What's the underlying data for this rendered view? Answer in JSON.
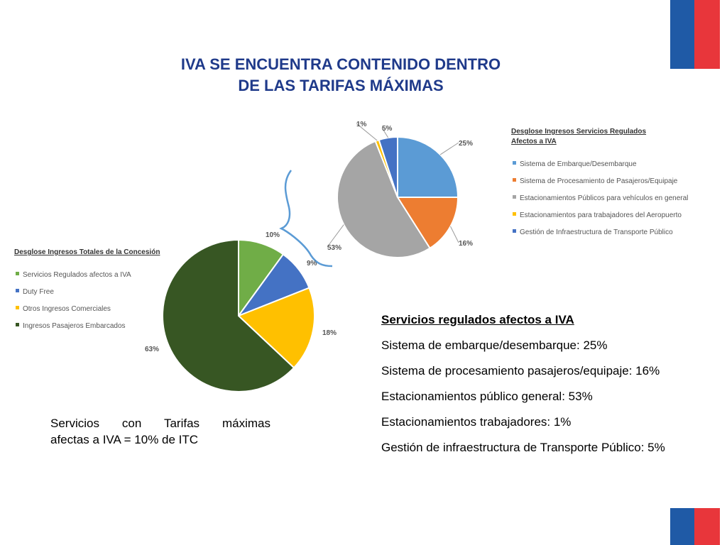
{
  "title": {
    "line1": "IVA SE ENCUENTRA CONTENIDO DENTRO",
    "line2": "DE LAS TARIFAS MÁXIMAS"
  },
  "logo": {
    "colors": [
      "#1f5aa6",
      "#e8363b"
    ]
  },
  "chart_data": [
    {
      "type": "pie",
      "title": "Desglose Ingresos Totales de la Concesión",
      "legend_position": "left",
      "slices": [
        {
          "label": "Servicios Regulados afectos a IVA",
          "value": 10,
          "display": "10%",
          "color": "#70ad47"
        },
        {
          "label": "Duty Free",
          "value": 9,
          "display": "9%",
          "color": "#4472c4"
        },
        {
          "label": "Otros Ingresos Comerciales",
          "value": 18,
          "display": "18%",
          "color": "#ffc000"
        },
        {
          "label": "Ingresos Pasajeros Embarcados",
          "value": 63,
          "display": "63%",
          "color": "#375623"
        }
      ]
    },
    {
      "type": "pie",
      "title": "Desglose Ingresos Servicios Regulados Afectos a IVA",
      "legend_position": "right",
      "slices": [
        {
          "label": "Sistema de Embarque/Desembarque",
          "value": 25,
          "display": "25%",
          "color": "#5b9bd5"
        },
        {
          "label": "Sistema de Procesamiento de Pasajeros/Equipaje",
          "value": 16,
          "display": "16%",
          "color": "#ed7d31"
        },
        {
          "label": "Estacionamientos Públicos para vehículos en general",
          "value": 53,
          "display": "53%",
          "color": "#a5a5a5"
        },
        {
          "label": "Estacionamientos para trabajadores del Aeropuerto",
          "value": 1,
          "display": "1%",
          "color": "#ffc000"
        },
        {
          "label": "Gestión de Infraestructura de Transporte Público",
          "value": 5,
          "display": "5%",
          "color": "#4472c4"
        }
      ]
    }
  ],
  "summary": {
    "heading": "Servicios regulados afectos a IVA",
    "items": [
      "Sistema de embarque/desembarque: 25%",
      "Sistema de procesamiento pasajeros/equipaje: 16%",
      "Estacionamientos público general: 53%",
      "Estacionamientos trabajadores: 1%",
      "Gestión de infraestructura de Transporte Público: 5%"
    ]
  },
  "note": {
    "line1": "Servicios con Tarifas máximas",
    "line2": "afectas a IVA = 10% de ITC"
  }
}
